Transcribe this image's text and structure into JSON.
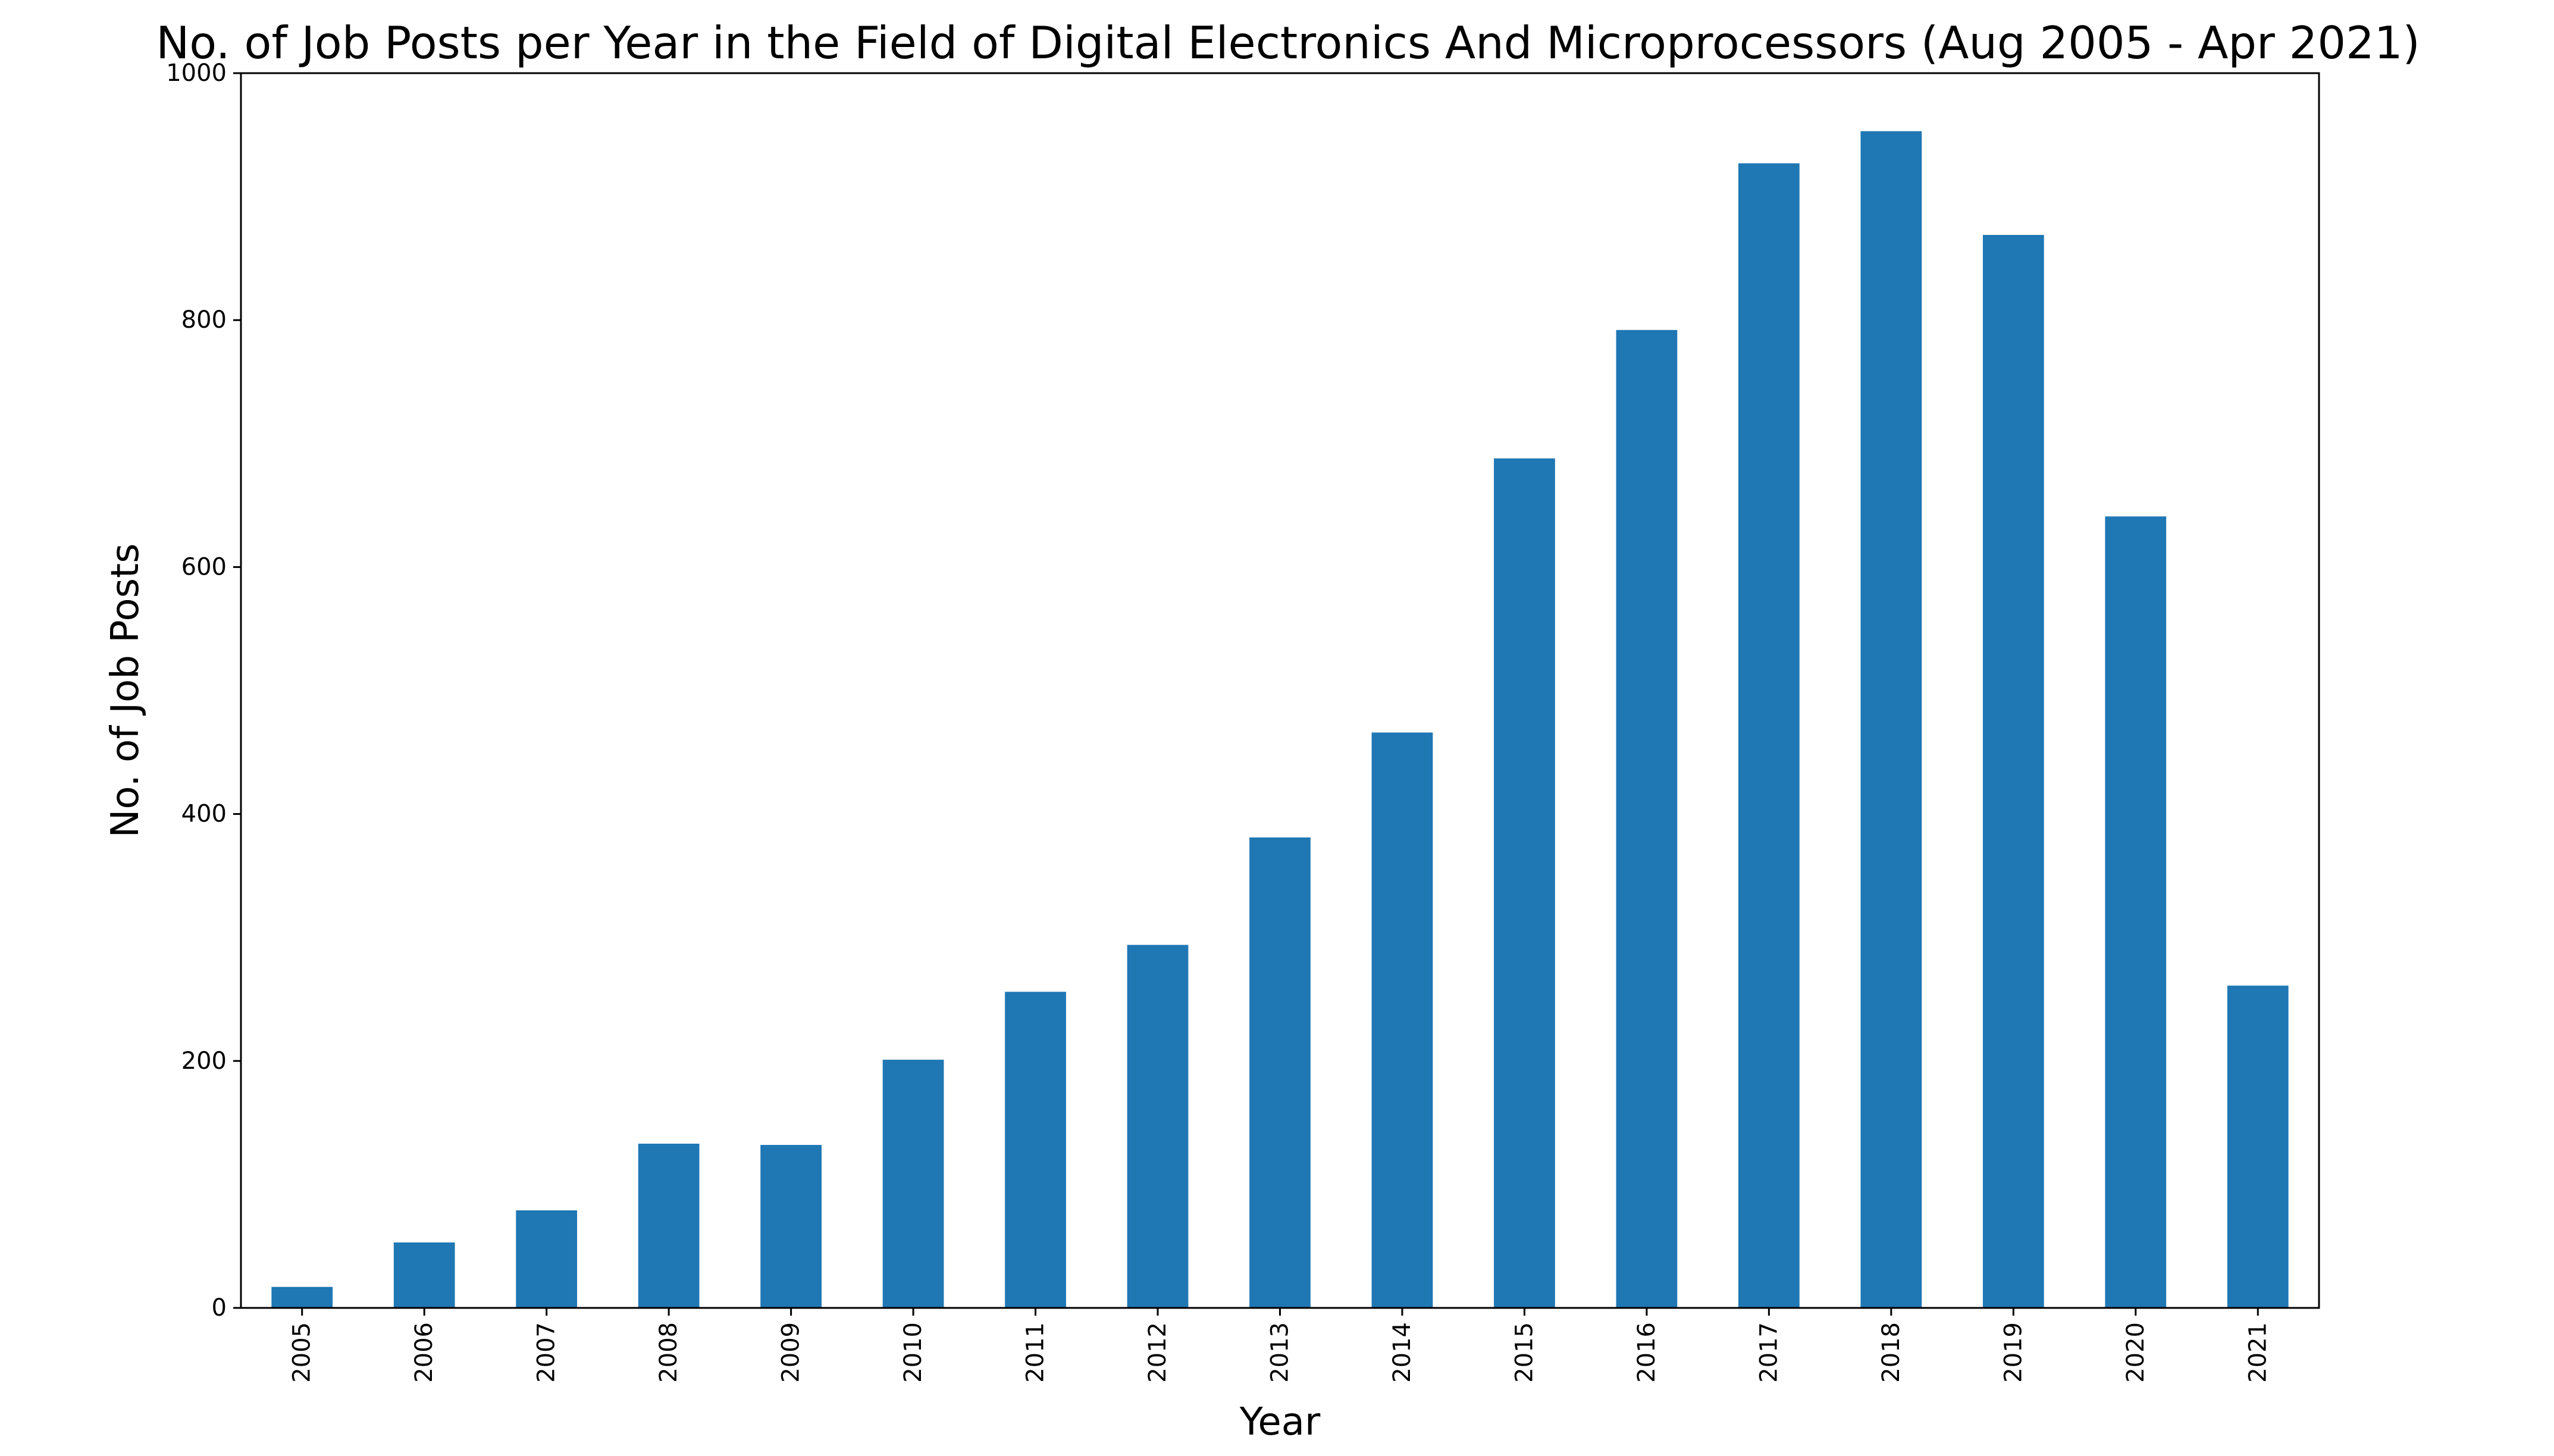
{
  "chart_data": {
    "type": "bar",
    "title": "No. of Job Posts per Year in the Field of Digital Electronics And Microprocessors (Aug 2005 - Apr 2021)",
    "xlabel": "Year",
    "ylabel": "No. of Job Posts",
    "categories": [
      "2005",
      "2006",
      "2007",
      "2008",
      "2009",
      "2010",
      "2011",
      "2012",
      "2013",
      "2014",
      "2015",
      "2016",
      "2017",
      "2018",
      "2019",
      "2020",
      "2021"
    ],
    "values": [
      17,
      53,
      79,
      133,
      132,
      201,
      256,
      294,
      381,
      466,
      688,
      792,
      927,
      953,
      869,
      641,
      261
    ],
    "ylim": [
      0,
      1000
    ],
    "yticks": [
      0,
      200,
      400,
      600,
      800,
      1000
    ],
    "grid": false,
    "bar_color": "#1f77b4"
  }
}
